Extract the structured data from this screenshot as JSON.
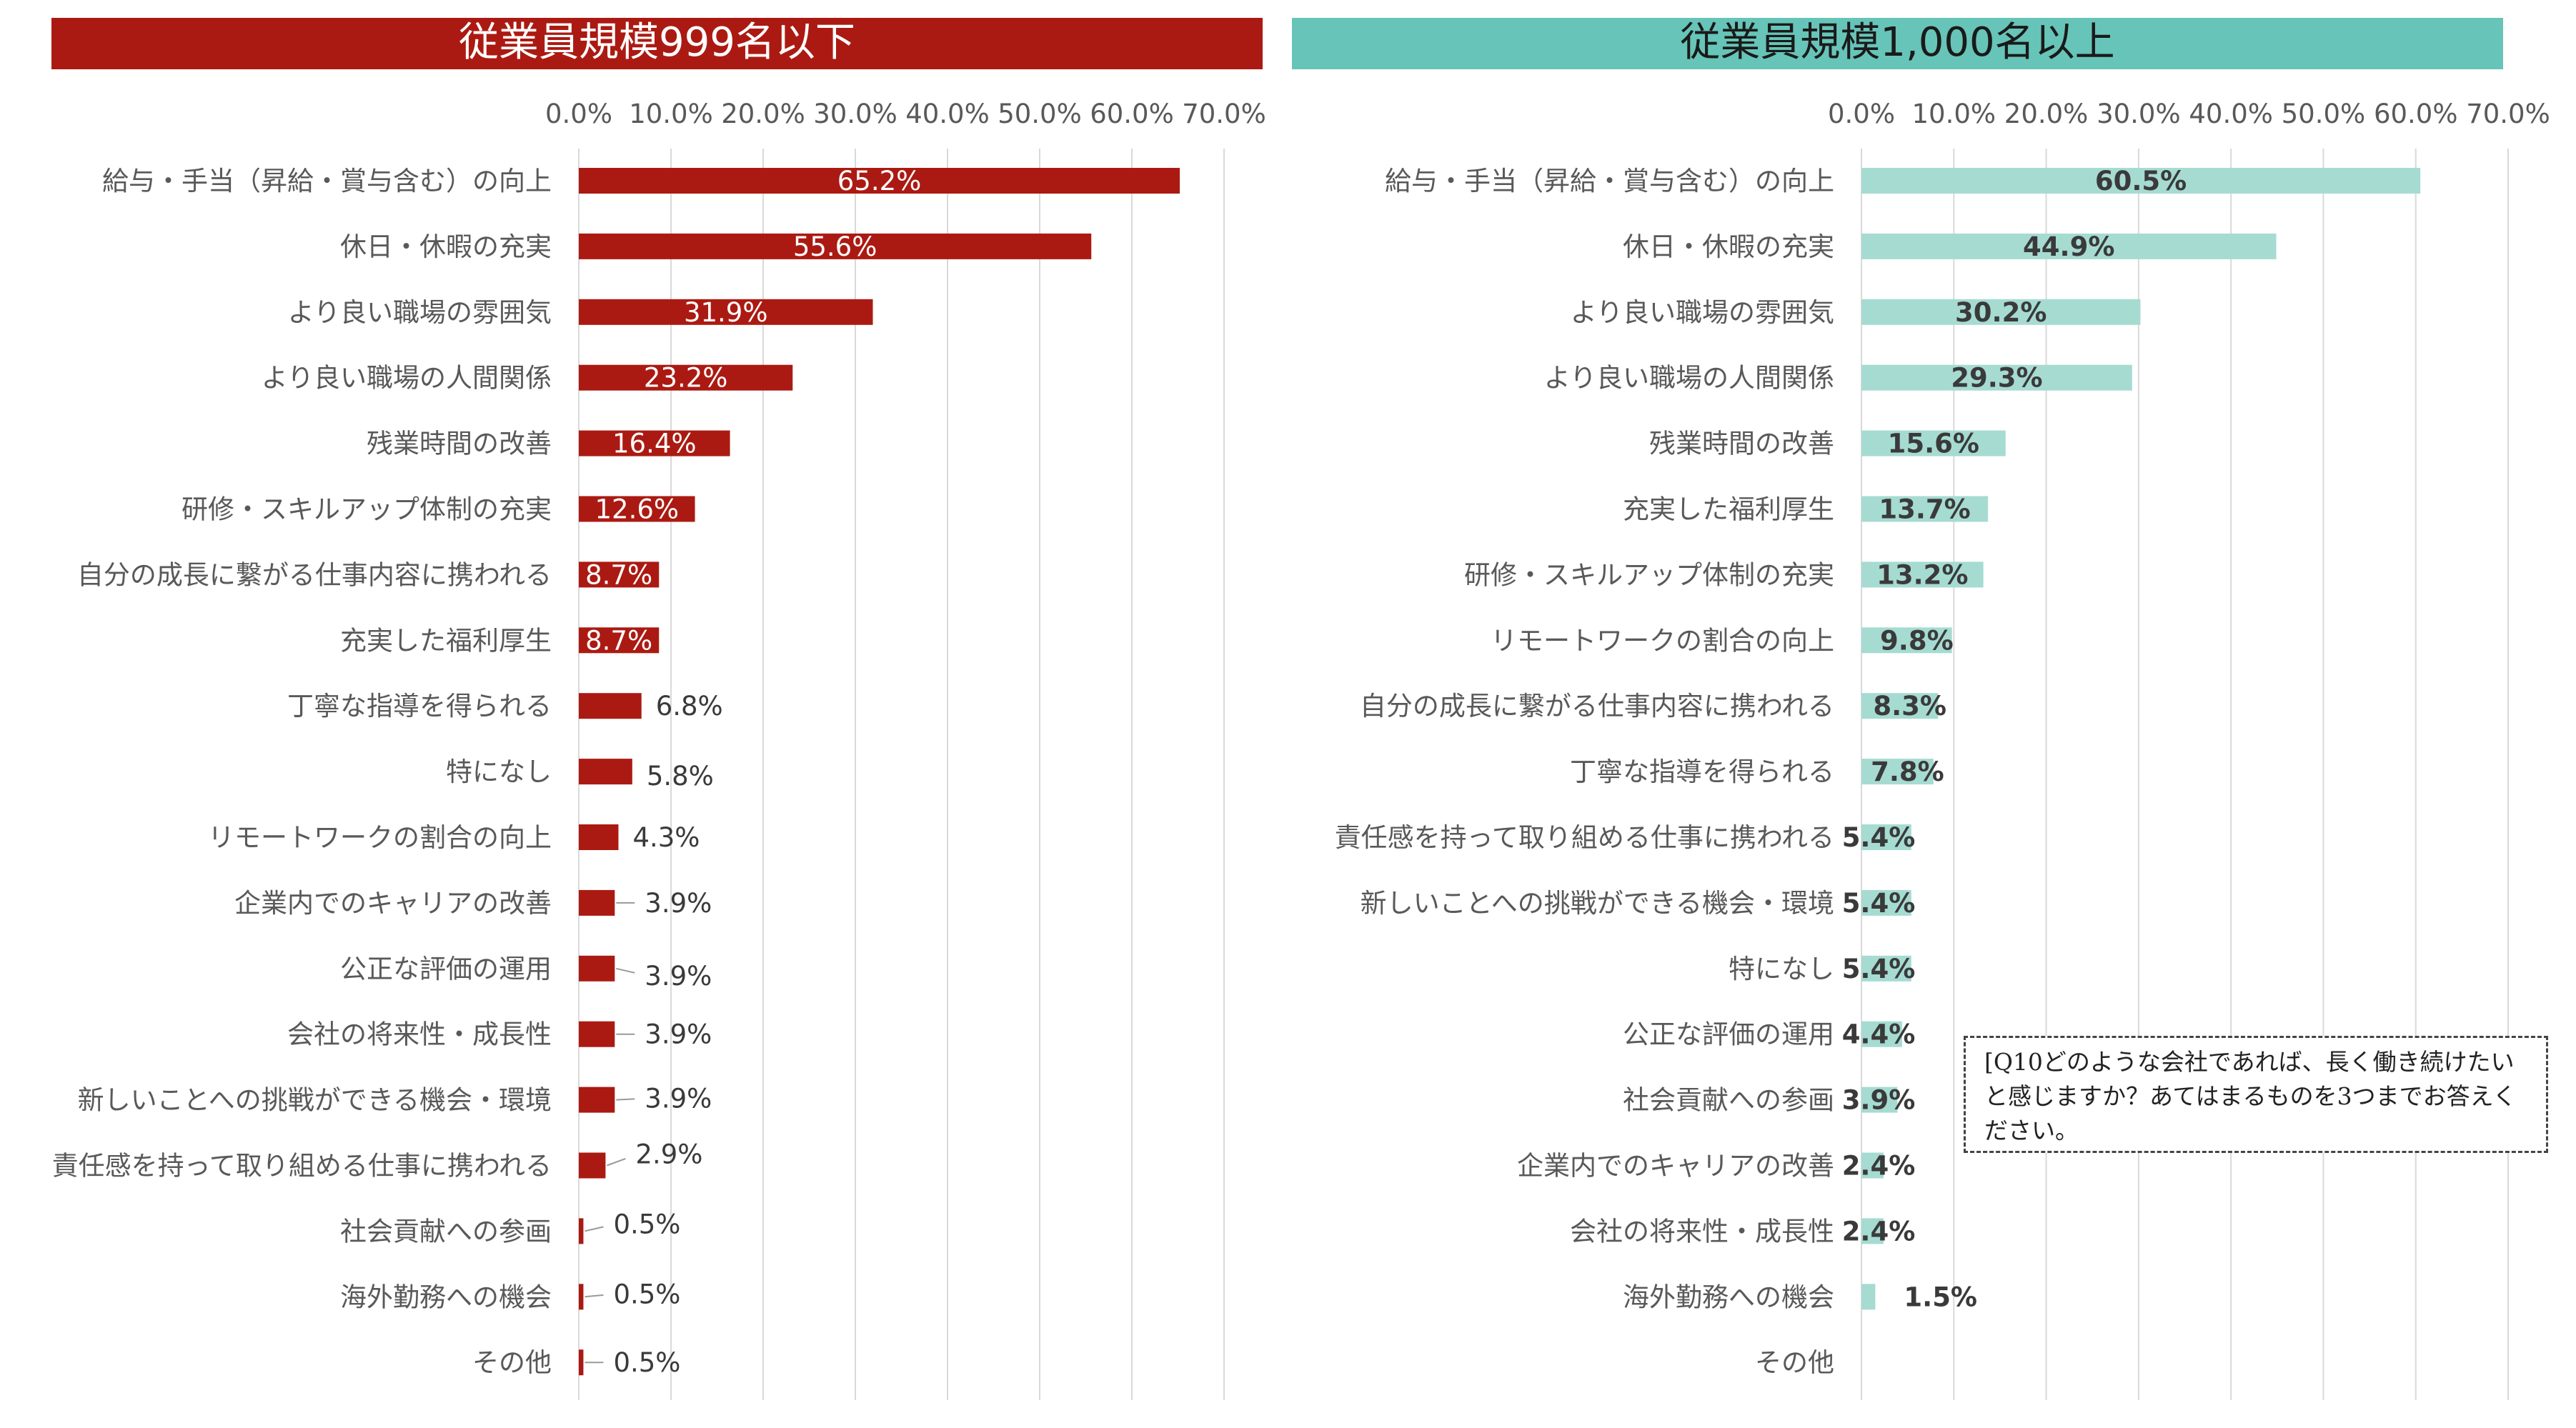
{
  "colors": {
    "left_accent": "#ab1a12",
    "right_bar": "#a6dbd2",
    "right_banner": "#67c4b8",
    "grid": "#d9d9d9",
    "label_text": "#595959",
    "value_dark": "#3a3a3a"
  },
  "note": "[Q10どのような会社であれば、長く働き続けたいと感じますか？あてはまるものを3つまでお答えください。",
  "chart_data": [
    {
      "type": "bar",
      "orientation": "horizontal",
      "title": "従業員規模999名以下",
      "xlim": [
        0,
        70
      ],
      "x_ticks": [
        "0.0%",
        "10.0%",
        "20.0%",
        "30.0%",
        "40.0%",
        "50.0%",
        "60.0%",
        "70.0%"
      ],
      "grid": true,
      "categories": [
        "給与・手当（昇給・賞与含む）の向上",
        "休日・休暇の充実",
        "より良い職場の雰囲気",
        "より良い職場の人間関係",
        "残業時間の改善",
        "研修・スキルアップ体制の充実",
        "自分の成長に繋がる仕事内容に携われる",
        "充実した福利厚生",
        "丁寧な指導を得られる",
        "特になし",
        "リモートワークの割合の向上",
        "企業内でのキャリアの改善",
        "公正な評価の運用",
        "会社の将来性・成長性",
        "新しいことへの挑戦ができる機会・環境",
        "責任感を持って取り組める仕事に携われる",
        "社会貢献への参画",
        "海外勤務への機会",
        "その他"
      ],
      "values": [
        65.2,
        55.6,
        31.9,
        23.2,
        16.4,
        12.6,
        8.7,
        8.7,
        6.8,
        5.8,
        4.3,
        3.9,
        3.9,
        3.9,
        3.9,
        2.9,
        0.5,
        0.5,
        0.5
      ],
      "value_labels": [
        "65.2%",
        "55.6%",
        "31.9%",
        "23.2%",
        "16.4%",
        "12.6%",
        "8.7%",
        "8.7%",
        "6.8%",
        "5.8%",
        "4.3%",
        "3.9%",
        "3.9%",
        "3.9%",
        "3.9%",
        "2.9%",
        "0.5%",
        "0.5%",
        "0.5%"
      ]
    },
    {
      "type": "bar",
      "orientation": "horizontal",
      "title": "従業員規模1,000名以上",
      "xlim": [
        0,
        70
      ],
      "x_ticks": [
        "0.0%",
        "10.0%",
        "20.0%",
        "30.0%",
        "40.0%",
        "50.0%",
        "60.0%",
        "70.0%"
      ],
      "grid": true,
      "categories": [
        "給与・手当（昇給・賞与含む）の向上",
        "休日・休暇の充実",
        "より良い職場の雰囲気",
        "より良い職場の人間関係",
        "残業時間の改善",
        "充実した福利厚生",
        "研修・スキルアップ体制の充実",
        "リモートワークの割合の向上",
        "自分の成長に繋がる仕事内容に携われる",
        "丁寧な指導を得られる",
        "責任感を持って取り組める仕事に携われる",
        "新しいことへの挑戦ができる機会・環境",
        "特になし",
        "公正な評価の運用",
        "社会貢献への参画",
        "企業内でのキャリアの改善",
        "会社の将来性・成長性",
        "海外勤務への機会",
        "その他"
      ],
      "values": [
        60.5,
        44.9,
        30.2,
        29.3,
        15.6,
        13.7,
        13.2,
        9.8,
        8.3,
        7.8,
        5.4,
        5.4,
        5.4,
        4.4,
        3.9,
        2.4,
        2.4,
        1.5,
        0
      ],
      "value_labels": [
        "60.5%",
        "44.9%",
        "30.2%",
        "29.3%",
        "15.6%",
        "13.7%",
        "13.2%",
        "9.8%",
        "8.3%",
        "7.8%",
        "5.4%",
        "5.4%",
        "5.4%",
        "4.4%",
        "3.9%",
        "2.4%",
        "2.4%",
        "1.5%",
        ""
      ]
    }
  ]
}
